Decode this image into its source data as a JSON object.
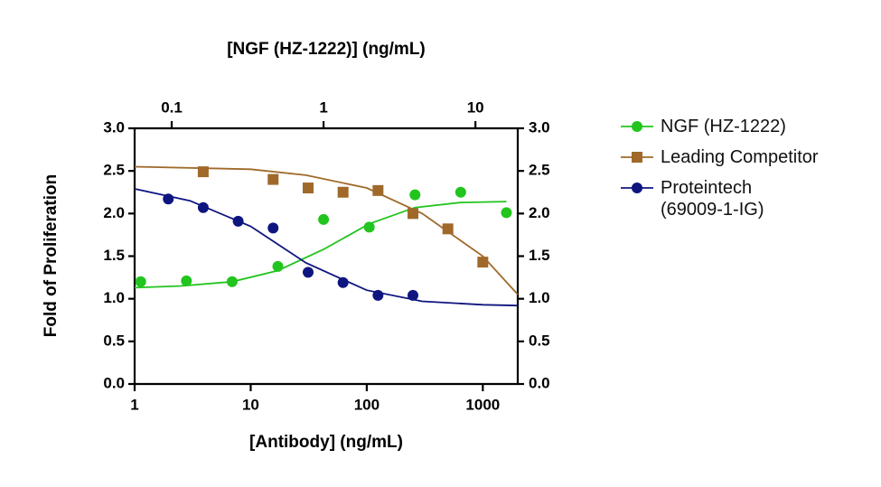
{
  "chart_data": {
    "type": "scatter",
    "title": "[NGF (HZ-1222)] (ng/mL)",
    "x_label": "[Antibody] (ng/mL)",
    "y_label": "Fold of Proliferation",
    "xscale": "log",
    "xlim": [
      1,
      2000
    ],
    "xticks": [
      1,
      10,
      100,
      1000
    ],
    "x2lim": [
      0.057,
      19
    ],
    "x2ticks": [
      0.1,
      1,
      10
    ],
    "ylim": [
      0,
      3
    ],
    "yticks": [
      {
        "value": 0,
        "label": "0.0"
      },
      {
        "value": 0.5,
        "label": "0.5"
      },
      {
        "value": 1,
        "label": "1.0"
      },
      {
        "value": 1.5,
        "label": "1.5"
      },
      {
        "value": 2,
        "label": "2.0"
      },
      {
        "value": 2.5,
        "label": "2.5"
      },
      {
        "value": 3,
        "label": "3.0"
      }
    ],
    "y2lim": [
      0,
      3
    ],
    "y2ticks": [
      {
        "value": 0,
        "label": "0.0"
      },
      {
        "value": 0.5,
        "label": "0.5"
      },
      {
        "value": 1,
        "label": "1.0"
      },
      {
        "value": 1.5,
        "label": "1.5"
      },
      {
        "value": 2,
        "label": "2.0"
      },
      {
        "value": 2.5,
        "label": "2.5"
      },
      {
        "value": 3,
        "label": "3.0"
      }
    ],
    "series": [
      {
        "name": "NGF (HZ-1222)",
        "color": "#22c41e",
        "marker": "circle",
        "xaxis": "x2",
        "x": [
          0.0625,
          0.125,
          0.25,
          0.5,
          1,
          2,
          4,
          8,
          16
        ],
        "values": [
          1.2,
          1.21,
          1.2,
          1.38,
          1.93,
          1.84,
          2.22,
          2.25,
          2.01
        ],
        "curve_x": [
          0.057,
          0.115,
          0.25,
          0.5,
          1,
          2,
          4,
          8,
          16
        ],
        "curve_y": [
          1.13,
          1.15,
          1.2,
          1.33,
          1.58,
          1.88,
          2.07,
          2.13,
          2.14
        ]
      },
      {
        "name": "Leading Competitor",
        "color": "#a0692a",
        "marker": "square",
        "x": [
          3.9,
          15.6,
          31.25,
          62.5,
          125,
          250,
          500,
          1000
        ],
        "values": [
          2.49,
          2.4,
          2.3,
          2.25,
          2.27,
          2.0,
          1.82,
          1.43
        ],
        "curve_x": [
          1,
          10,
          30,
          100,
          300,
          1000,
          2000
        ],
        "curve_y": [
          2.55,
          2.52,
          2.45,
          2.3,
          2.0,
          1.5,
          1.05
        ]
      },
      {
        "name": "Proteintech (69009-1-IG)",
        "color": "#0f157f",
        "marker": "circle",
        "x": [
          1.95,
          3.9,
          7.8,
          15.6,
          31.25,
          62.5,
          125,
          250
        ],
        "values": [
          2.17,
          2.07,
          1.91,
          1.83,
          1.31,
          1.19,
          1.04,
          1.04
        ],
        "curve_x": [
          1,
          3,
          10,
          30,
          100,
          300,
          1000,
          2000
        ],
        "curve_y": [
          2.29,
          2.15,
          1.85,
          1.42,
          1.1,
          0.97,
          0.93,
          0.92
        ]
      }
    ]
  }
}
